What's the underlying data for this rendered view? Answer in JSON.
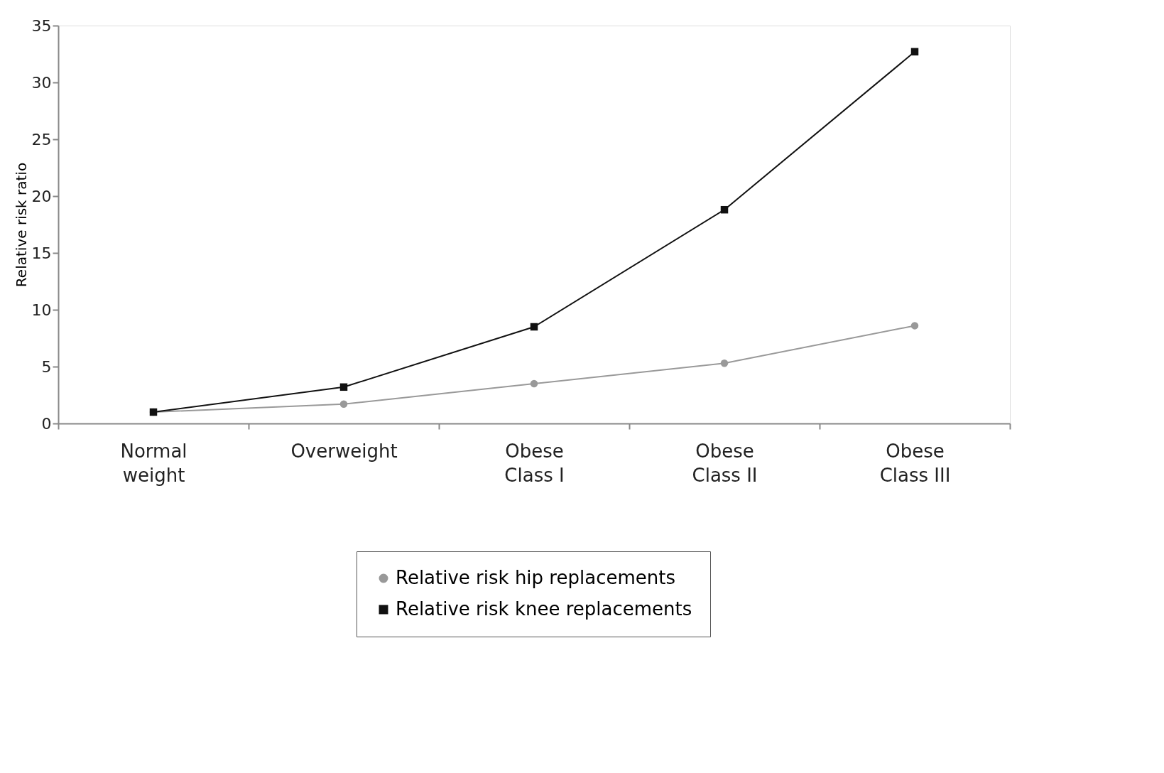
{
  "chart_data": {
    "type": "line",
    "ylabel": "Relative risk ratio",
    "categories": [
      "Normal\nweight",
      "Overweight",
      "Obese\nClass I",
      "Obese\nClass II",
      "Obese\nClass III"
    ],
    "series": [
      {
        "name": "Relative risk hip replacements",
        "color": "#999999",
        "marker": "circle",
        "values": [
          1,
          1.7,
          3.5,
          5.3,
          8.6
        ]
      },
      {
        "name": "Relative risk knee replacements",
        "color": "#111111",
        "marker": "square",
        "values": [
          1,
          3.2,
          8.5,
          18.8,
          32.7
        ]
      }
    ],
    "ylim": [
      0,
      35
    ],
    "yticks": [
      0,
      5,
      10,
      15,
      20,
      25,
      30,
      35
    ],
    "grid": false,
    "legend": "bottom"
  }
}
